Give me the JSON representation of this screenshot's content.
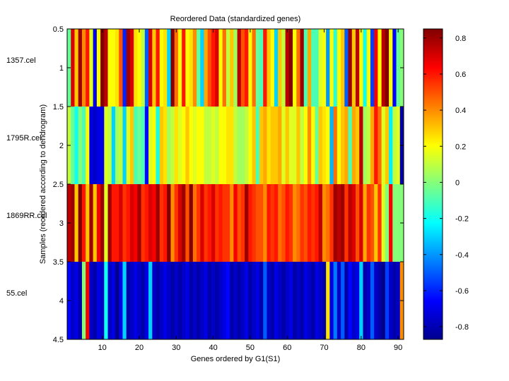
{
  "chart_data": {
    "type": "heatmap",
    "title": "Reordered Data (standardized genes)",
    "xlabel": "Genes ordered by G1(S1)",
    "ylabel": "Samples (reordered according to dendrogram)",
    "colormap": "jet",
    "x_range": [
      0.5,
      91.5
    ],
    "y_range": [
      0.5,
      4.5
    ],
    "x_ticks": [
      10,
      20,
      30,
      40,
      50,
      60,
      70,
      80,
      90
    ],
    "y_ticks": [
      0.5,
      1,
      1.5,
      2,
      2.5,
      3,
      3.5,
      4,
      4.5
    ],
    "y_tick_labels": [
      "0.5",
      "1",
      "1.5",
      "2",
      "2.5",
      "3",
      "3.5",
      "4",
      "4.5"
    ],
    "row_labels": [
      "1357.cel",
      "1795R.cel",
      "1869RR.cel",
      "55.cel"
    ],
    "colorbar": {
      "min": -0.87,
      "max": 0.85,
      "ticks": [
        0.8,
        0.6,
        0.4,
        0.2,
        0,
        -0.2,
        -0.4,
        -0.6,
        -0.8
      ],
      "tick_labels": [
        "0.8",
        "0.6",
        "0.4",
        "0.2",
        "0",
        "-0.2",
        "-0.4",
        "-0.6",
        "-0.8"
      ]
    },
    "rows": [
      {
        "sample": "1357.cel",
        "values": [
          -0.05,
          0.7,
          0.3,
          0.8,
          0.4,
          0.6,
          0.15,
          -0.7,
          0.2,
          0.85,
          0.75,
          0.2,
          0.2,
          0.25,
          0.5,
          -0.6,
          0.8,
          0.7,
          0.25,
          0.2,
          0.1,
          -0.5,
          0.7,
          0.3,
          0.6,
          0.2,
          0.25,
          -0.3,
          0.85,
          0.45,
          0.2,
          0.6,
          0.2,
          0.25,
          0.4,
          -0.05,
          -0.3,
          0.35,
          0.5,
          0.6,
          0.7,
          0.2,
          0.45,
          0.1,
          0.3,
          0.05,
          0.75,
          0.5,
          0.6,
          0.2,
          0.45,
          -0.05,
          -0.1,
          0.6,
          0.3,
          0.2,
          -0.3,
          0.3,
          0.1,
          0.75,
          0.85,
          0.2,
          0.45,
          0.8,
          -0.1,
          0.35,
          -0.1,
          -0.1,
          0.15,
          0.2,
          -0.4,
          0.2,
          -0.15,
          0.2,
          0.3,
          -0.5,
          0.8,
          0.3,
          0.75,
          0.2,
          -0.2,
          0.2,
          -0.55,
          0.65,
          0.2,
          0.75,
          0.85,
          0.2,
          -0.65,
          -0.05,
          0.0
        ]
      },
      {
        "sample": "1795R.cel",
        "values": [
          0.1,
          -0.05,
          -0.2,
          0.0,
          -0.1,
          0.2,
          -0.7,
          -0.75,
          -0.7,
          -0.7,
          0.15,
          0.1,
          -0.3,
          0.05,
          0.1,
          -0.3,
          0.15,
          0.3,
          -0.1,
          -0.05,
          -0.1,
          -0.65,
          0.15,
          0.2,
          -0.2,
          0.3,
          0.25,
          0.05,
          0.1,
          0.25,
          0.15,
          0.2,
          0.3,
          0.2,
          0.15,
          0.2,
          0.2,
          0.1,
          0.1,
          0.15,
          0.1,
          0.2,
          0.2,
          0.25,
          0.25,
          0.1,
          0.05,
          0.05,
          0.1,
          0.2,
          0.3,
          -0.1,
          0.3,
          0.35,
          0.25,
          0.3,
          0.3,
          0.35,
          0.15,
          0.3,
          0.15,
          0.15,
          0.3,
          0.1,
          0.2,
          0.4,
          0.2,
          -0.05,
          0.3,
          0.25,
          0.2,
          -0.35,
          0.45,
          0.2,
          0.3,
          0.35,
          -0.1,
          0.35,
          0.3,
          0.75,
          0.05,
          0.1,
          0.35,
          0.6,
          0.45,
          0.15,
          0.3,
          -0.25,
          0.1,
          0.15,
          -0.8
        ]
      },
      {
        "sample": "1869RR.cel",
        "values": [
          0.75,
          0.8,
          0.3,
          0.85,
          0.6,
          0.3,
          0.8,
          0.3,
          0.65,
          0.8,
          0.15,
          0.8,
          0.6,
          0.6,
          0.7,
          0.55,
          0.6,
          0.7,
          0.65,
          0.8,
          0.55,
          0.6,
          0.7,
          0.65,
          0.8,
          0.55,
          0.6,
          0.85,
          0.4,
          0.55,
          0.7,
          0.8,
          0.5,
          0.85,
          0.45,
          0.55,
          0.7,
          0.55,
          0.6,
          0.7,
          0.55,
          0.6,
          0.55,
          0.55,
          0.4,
          0.65,
          0.5,
          0.55,
          0.8,
          0.6,
          0.55,
          0.5,
          0.5,
          0.4,
          0.6,
          0.55,
          0.6,
          0.45,
          0.5,
          0.6,
          0.55,
          0.4,
          0.45,
          0.55,
          0.5,
          0.6,
          0.55,
          0.6,
          0.75,
          0.4,
          0.45,
          0.55,
          0.8,
          0.75,
          0.8,
          0.55,
          0.75,
          0.7,
          0.5,
          0.7,
          0.35,
          0.55,
          0.5,
          0.3,
          0.55,
          0.15,
          0.0,
          0.65,
          0.0,
          0.0,
          0.0
        ]
      },
      {
        "sample": "55.cel",
        "values": [
          -0.65,
          -0.75,
          -0.7,
          -0.8,
          0.0,
          0.65,
          -0.75,
          -0.8,
          -0.7,
          -0.75,
          -0.2,
          -0.75,
          -0.7,
          -0.85,
          -0.7,
          -0.3,
          -0.8,
          -0.75,
          -0.7,
          -0.75,
          -0.8,
          -0.7,
          -0.3,
          -0.75,
          -0.8,
          -0.75,
          -0.7,
          -0.75,
          -0.8,
          -0.75,
          -0.8,
          -0.75,
          -0.7,
          -0.8,
          -0.75,
          -0.8,
          -0.75,
          -0.7,
          -0.8,
          -0.75,
          -0.8,
          -0.75,
          -0.7,
          -0.65,
          -0.8,
          -0.75,
          -0.8,
          -0.75,
          -0.7,
          -0.8,
          -0.75,
          -0.7,
          -0.8,
          -0.5,
          -0.75,
          -0.8,
          -0.7,
          -0.75,
          -0.8,
          -0.75,
          -0.7,
          -0.8,
          -0.75,
          -0.8,
          -0.7,
          -0.75,
          -0.8,
          -0.7,
          -0.75,
          -0.8,
          0.25,
          -0.7,
          -0.45,
          -0.75,
          -0.5,
          -0.8,
          -0.65,
          -0.75,
          -0.7,
          -0.3,
          -0.8,
          -0.75,
          -0.5,
          -0.75,
          -0.8,
          -0.85,
          -0.55,
          -0.75,
          -0.8,
          -0.75,
          0.4
        ]
      }
    ]
  }
}
